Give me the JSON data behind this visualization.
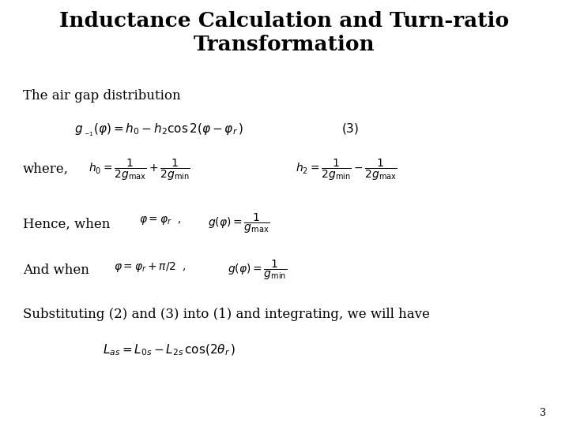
{
  "title_line1": "Inductance Calculation and Turn-ratio",
  "title_line2": "Transformation",
  "bg_color": "#ffffff",
  "text_color": "#000000",
  "page_number": "3",
  "title_fontsize": 19,
  "body_fontsize": 12,
  "math_fontsize": 11,
  "small_math_fontsize": 10
}
